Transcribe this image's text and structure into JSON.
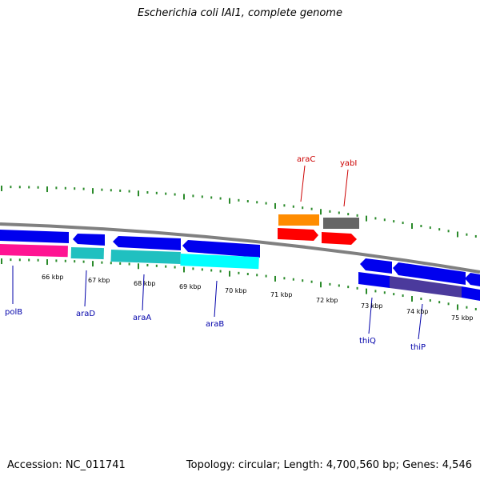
{
  "title": "Escherichia coli IAI1, complete genome",
  "footer": {
    "accession": "Accession: NC_011741",
    "summary": "Topology: circular; Length: 4,700,560 bp; Genes: 4,546"
  },
  "colors": {
    "backbone": "#808080",
    "ticks": "#2a8a2a",
    "forward_label": "#cc0000",
    "reverse_label": "#0000aa"
  },
  "tick_labels": [
    "66 kbp",
    "67 kbp",
    "68 kbp",
    "69 kbp",
    "70 kbp",
    "71 kbp",
    "72 kbp",
    "73 kbp",
    "74 kbp",
    "75 kbp"
  ],
  "genes": [
    {
      "name": "polB",
      "strand": "reverse"
    },
    {
      "name": "araD",
      "strand": "reverse"
    },
    {
      "name": "araA",
      "strand": "reverse"
    },
    {
      "name": "araB",
      "strand": "reverse"
    },
    {
      "name": "araC",
      "strand": "forward"
    },
    {
      "name": "yabI",
      "strand": "forward"
    },
    {
      "name": "thiQ",
      "strand": "reverse"
    },
    {
      "name": "thiP",
      "strand": "reverse"
    }
  ]
}
